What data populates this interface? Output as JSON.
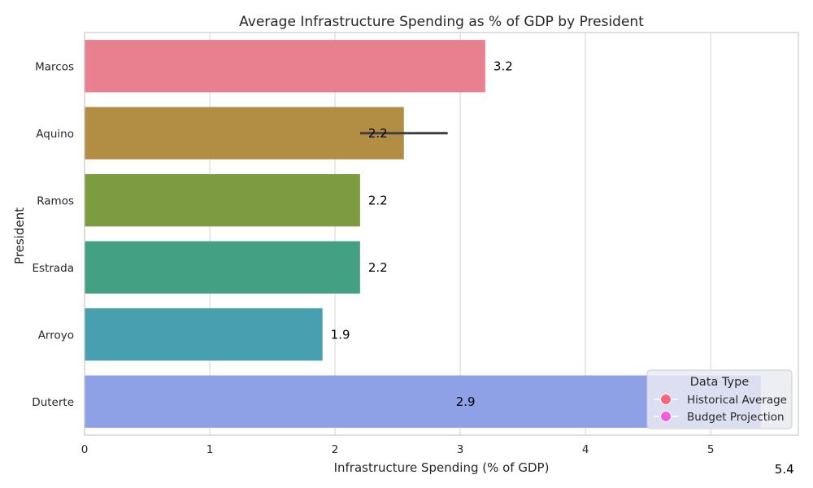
{
  "chart_data": {
    "type": "bar",
    "orientation": "horizontal",
    "title": "Average Infrastructure Spending as % of GDP by President",
    "xlabel": "Infrastructure Spending (% of GDP)",
    "ylabel": "President",
    "xlim": [
      0,
      5.7
    ],
    "xticks": [
      "0",
      "1",
      "2",
      "3",
      "4",
      "5"
    ],
    "grid": true,
    "categories": [
      "Marcos",
      "Aquino",
      "Ramos",
      "Estrada",
      "Arroyo",
      "Duterte"
    ],
    "values": [
      3.2,
      2.55,
      2.2,
      2.2,
      1.9,
      5.4
    ],
    "colors": [
      "#e8808f",
      "#b28e44",
      "#7c9c3f",
      "#43a083",
      "#479fb0",
      "#8fa1e6"
    ],
    "error_bars": [
      null,
      [
        2.2,
        2.9
      ],
      null,
      null,
      null,
      null
    ],
    "data_labels": [
      {
        "text": "3.2",
        "x": 3.2,
        "row": 0
      },
      {
        "text": "2.2",
        "x": 2.2,
        "row": 1
      },
      {
        "text": "2.2",
        "x": 2.2,
        "row": 2
      },
      {
        "text": "2.2",
        "x": 2.2,
        "row": 3
      },
      {
        "text": "1.9",
        "x": 1.9,
        "row": 4
      },
      {
        "text": "2.9",
        "x": 2.9,
        "row": 5
      }
    ],
    "extra_label": {
      "text": "5.4",
      "x": 5.4
    },
    "legend": {
      "title": "Data Type",
      "position": "bottom-right",
      "entries": [
        {
          "name": "Historical Average",
          "color": "#f7667f"
        },
        {
          "name": "Budget Projection",
          "color": "#f15ee0"
        }
      ]
    }
  }
}
